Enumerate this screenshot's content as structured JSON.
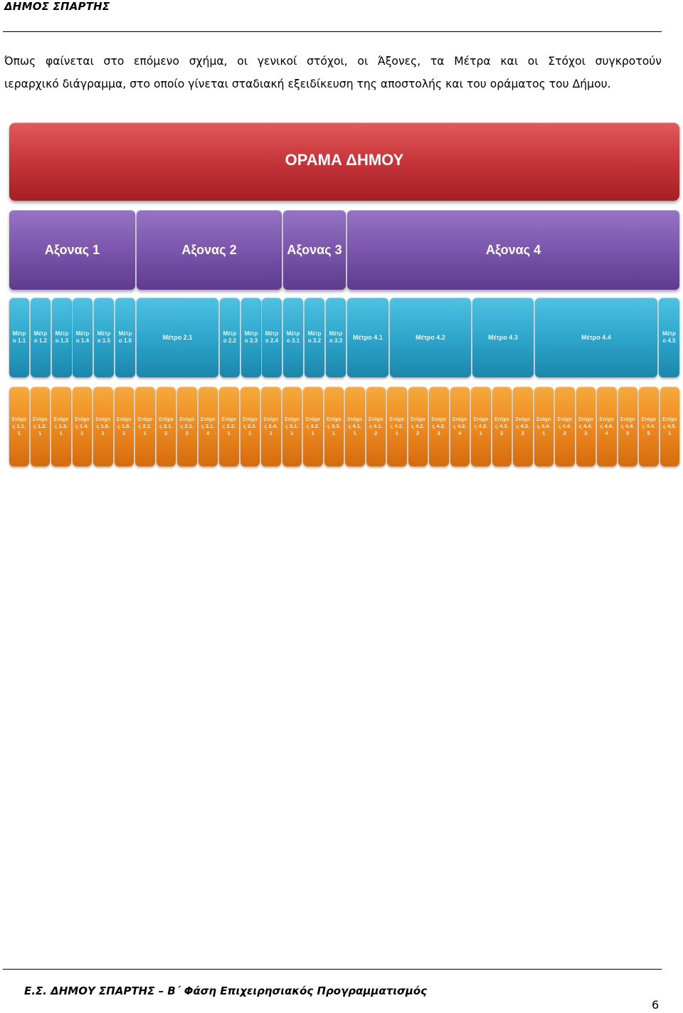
{
  "header": {
    "title": "ΔΗΜΟΣ ΣΠΑΡΤΗΣ"
  },
  "intro": {
    "line1": "Όπως φαίνεται στο επόμενο σχήμα, οι γενικοί στόχοι, οι Άξονες, τα  Μέτρα και οι Στόχοι συγκροτούν",
    "line2": "ιεραρχικό διάγραμμα, στο οποίο γίνεται σταδιακή εξειδίκευση της αποστολής και του οράματος του Δήμου."
  },
  "diagram": {
    "vision": "ΟΡΑΜΑ ΔΗΜΟΥ",
    "axes": [
      "Αξονας 1",
      "Αξονας 2",
      "Αξονας 3",
      "Αξονας 4"
    ],
    "measures": [
      "Μέτρο 1.1",
      "Μέτρο 1.2",
      "Μέτρο 1.3",
      "Μέτρο 1.4",
      "Μέτρο 1.5",
      "Μέτρο 1.6",
      "Μέτρο 2.1",
      "Μέτρο 2.2",
      "Μέτρο 2.3",
      "Μέτρο 2.4",
      "Μέτρο 3.1",
      "Μέτρο 3.2",
      "Μέτρο 3.3",
      "Μέτρο 4.1",
      "Μέτρο 4.2",
      "Μέτρο 4.3",
      "Μέτρο 4.4",
      "Μέτρο 4.5"
    ],
    "targets": [
      "Στόχος 1.1.1",
      "Στόχος 1.2.1",
      "Στόχος 1.3.1",
      "Στόχος 1.4.1",
      "Στόχος 1.5.1",
      "Στόχος 1.6.1",
      "Στόχος 2.1.1",
      "Στόχος 2.1.2",
      "Στόχος 2.1.3",
      "Στόχος 2.1.4",
      "Στόχος 2.2.1",
      "Στόχος 2.3.1",
      "Στόχος 2.4.1",
      "Στόχος 3.1.1",
      "Στόχος 3.2.1",
      "Στόχος 3.3.1",
      "Στόχος 4.1.1",
      "Στόχος 4.1.2",
      "Στόχος 4.2.1",
      "Στόχος 4.2.2",
      "Στόχος 4.2.3",
      "Στόχος 4.2.4",
      "Στόχος 4.3.1",
      "Στόχος 4.3.2",
      "Στόχος 4.3.3",
      "Στόχος 4.4.1",
      "Στόχος 4.4.2",
      "Στόχος 4.4.3",
      "Στόχος 4.4.4",
      "Στόχος 4.4.5",
      "Στόχος 4.4.5",
      "Στόχος 4.5.1"
    ],
    "colors": {
      "vision": "#c9383c",
      "axis": "#7b56ac",
      "measure": "#2ea6cc",
      "target": "#ee8a1f"
    }
  },
  "footer": {
    "text": "Ε.Σ. ΔΗΜΟΥ ΣΠΑΡΤΗΣ – Β΄ Φάση Επιχειρησιακός Προγραμματισμός",
    "page_number": "6"
  }
}
